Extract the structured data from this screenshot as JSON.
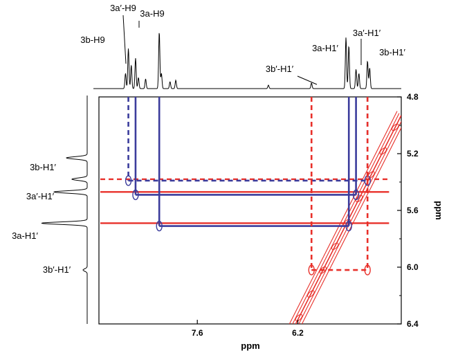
{
  "chart_data": {
    "type": "scatter",
    "subtype": "2D NMR spectrum with 1D projections",
    "xlabel": "ppm",
    "ylabel": "ppm",
    "x_ticks": [
      "7.6",
      "6.2"
    ],
    "y_ticks": [
      "4.8",
      "5.2",
      "5.6",
      "6.0",
      "6.4"
    ],
    "x_range_ppm": [
      8.97,
      4.76
    ],
    "y_range_ppm": [
      4.8,
      6.4
    ],
    "colors": {
      "blue": "#3b3c9c",
      "red": "#e8302a"
    },
    "top_labels": [
      {
        "text": "3a′-H9"
      },
      {
        "text": "3a-H9"
      },
      {
        "text": "3b-H9"
      },
      {
        "text": "3b′-H1′"
      },
      {
        "text": "3a-H1′"
      },
      {
        "text": "3a′-H1′"
      },
      {
        "text": "3b-H1′"
      }
    ],
    "left_labels": [
      {
        "text": "3b-H1′"
      },
      {
        "text": "3a′-H1′"
      },
      {
        "text": "3a-H1′"
      },
      {
        "text": "3b′-H1′"
      }
    ],
    "diagonal": {
      "from": [
        6.27,
        6.44
      ],
      "to": [
        4.76,
        4.93
      ]
    },
    "cross_peak_lines": [
      {
        "series": "3b",
        "color": "blue",
        "style": "dashed",
        "h1_prime_ppm": 5.39,
        "h9_ppm": 8.56,
        "h1_ppm": 5.23
      },
      {
        "series": "3a′",
        "color": "blue",
        "style": "solid",
        "h1_prime_ppm": 5.49,
        "h9_ppm": 8.46,
        "h1_ppm": 5.39
      },
      {
        "series": "3a",
        "color": "blue",
        "style": "solid",
        "h1_prime_ppm": 5.71,
        "h9_ppm": 8.13,
        "h1_ppm": 5.49
      },
      {
        "series": "3b′",
        "color": "red",
        "style": "dashed",
        "h1_prime_ppm": 6.02,
        "h9_ppm": 6.01,
        "h1_ppm": 5.23
      }
    ],
    "red_rows": [
      {
        "style": "dashed",
        "y_ppm": 5.38
      },
      {
        "style": "solid",
        "y_ppm": 5.47
      },
      {
        "style": "solid",
        "y_ppm": 5.69
      }
    ]
  }
}
